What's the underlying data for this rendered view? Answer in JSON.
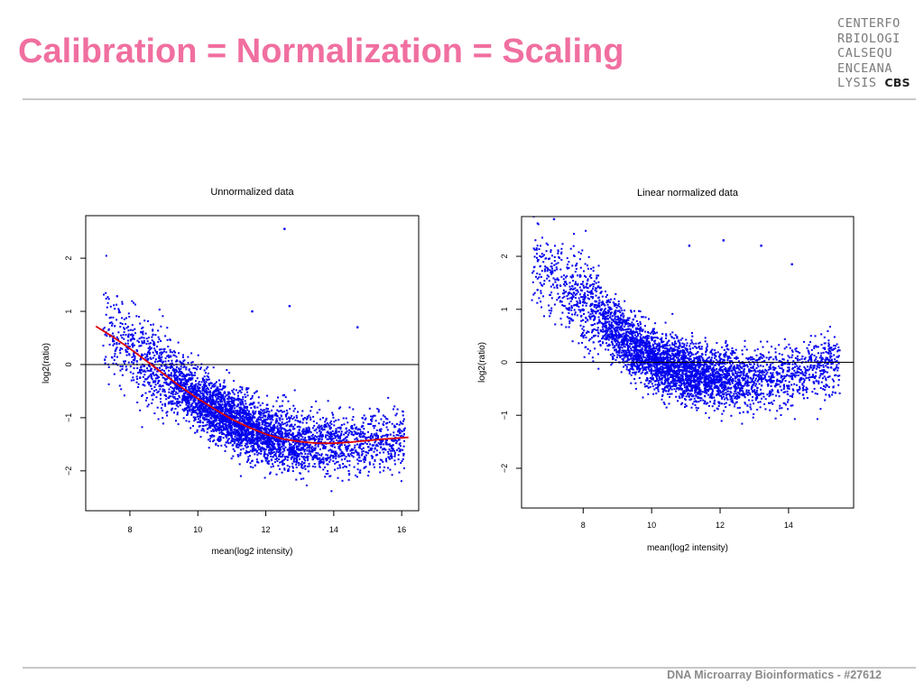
{
  "slide": {
    "title": "Calibration = Normalization = Scaling",
    "footer": "DNA Microarray Bioinformatics - #27612"
  },
  "logo": {
    "lines": [
      "CENTERFO",
      "RBIOLOGI",
      "CALSEQU",
      "ENCEANA"
    ],
    "last_line_prefix": "LYSIS",
    "last_line_strong": "CBS"
  },
  "colors": {
    "title": "#f06fa0",
    "points": "#0000ee",
    "fit_curve": "#dd0000"
  },
  "chart_data": [
    {
      "type": "scatter",
      "title": "Unnormalized data",
      "xlabel": "mean(log2 intensity)",
      "ylabel": "log2(ratio)",
      "xlim": [
        6.7,
        16.5
      ],
      "ylim": [
        -2.75,
        2.8
      ],
      "xticks": [
        8,
        10,
        12,
        14,
        16
      ],
      "yticks": [
        -2,
        -1,
        0,
        1,
        2
      ],
      "ytick_labels": [
        "−2",
        "−1",
        "0",
        "1",
        "2"
      ],
      "hline": 0,
      "point_cloud": {
        "n_points": 4200,
        "x_range": [
          7.2,
          16.1
        ],
        "trend_x": [
          7,
          8,
          9,
          10,
          11,
          12,
          13,
          14,
          15,
          16
        ],
        "trend_y": [
          0.7,
          0.35,
          -0.15,
          -0.65,
          -1.05,
          -1.33,
          -1.47,
          -1.5,
          -1.45,
          -1.38
        ]
      },
      "outliers": [
        [
          12.55,
          2.55
        ],
        [
          12.7,
          1.1
        ],
        [
          14.7,
          0.7
        ],
        [
          11.6,
          1.0
        ]
      ],
      "fit_curve": {
        "x": [
          7.0,
          7.5,
          8.0,
          8.5,
          9.0,
          9.5,
          10.0,
          10.5,
          11.0,
          11.5,
          12.0,
          12.5,
          13.0,
          13.5,
          14.0,
          14.5,
          15.0,
          15.5,
          16.2
        ],
        "y": [
          0.72,
          0.52,
          0.3,
          0.06,
          -0.18,
          -0.42,
          -0.64,
          -0.84,
          -1.03,
          -1.18,
          -1.31,
          -1.4,
          -1.45,
          -1.48,
          -1.48,
          -1.46,
          -1.43,
          -1.4,
          -1.37
        ]
      }
    },
    {
      "type": "scatter",
      "title": "Linear normalized data",
      "xlabel": "mean(log2 intensity)",
      "ylabel": "log2(ratio)",
      "xlim": [
        6.2,
        15.9
      ],
      "ylim": [
        -2.75,
        2.75
      ],
      "xticks": [
        8,
        10,
        12,
        14
      ],
      "yticks": [
        -2,
        -1,
        0,
        1,
        2
      ],
      "ytick_labels": [
        "−2",
        "−1",
        "0",
        "1",
        "2"
      ],
      "hline": 0,
      "point_cloud": {
        "n_points": 4200,
        "x_range": [
          6.5,
          15.5
        ],
        "trend_x": [
          6.5,
          7.5,
          8.5,
          9.5,
          10.5,
          11.5,
          12.5,
          13.5,
          14.5,
          15.5
        ],
        "trend_y": [
          1.85,
          1.45,
          0.85,
          0.25,
          -0.1,
          -0.25,
          -0.35,
          -0.3,
          -0.2,
          0.0
        ]
      },
      "outliers": [
        [
          7.15,
          2.7
        ],
        [
          11.1,
          2.2
        ],
        [
          12.1,
          2.3
        ],
        [
          13.2,
          2.2
        ],
        [
          14.1,
          1.85
        ]
      ]
    }
  ]
}
